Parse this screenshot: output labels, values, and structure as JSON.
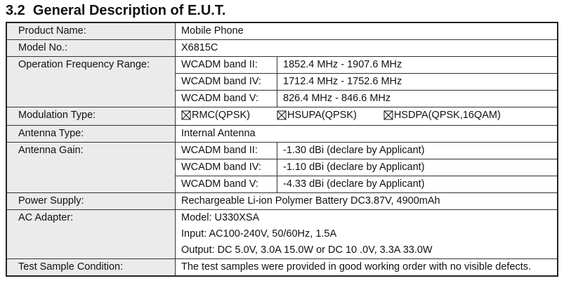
{
  "title": "3.2  General Description of E.U.T.",
  "rows": [
    {
      "label": "Product Name:",
      "value": "Mobile Phone"
    },
    {
      "label": "Model No.:",
      "value": "X6815C"
    },
    {
      "label": "Operation Frequency Range:",
      "items": [
        {
          "band": "WCADM band II:",
          "value": "1852.4 MHz - 1907.6 MHz"
        },
        {
          "band": "WCADM band IV:",
          "value": "1712.4 MHz - 1752.6 MHz"
        },
        {
          "band": "WCADM band V:",
          "value": "826.4 MHz - 846.6 MHz"
        }
      ]
    },
    {
      "label": "Modulation Type:",
      "checks": [
        "RMC(QPSK)",
        "HSUPA(QPSK)",
        "HSDPA(QPSK,16QAM)"
      ]
    },
    {
      "label": "Antenna Type:",
      "value": "Internal Antenna"
    },
    {
      "label": "Antenna Gain:",
      "items": [
        {
          "band": "WCADM band II:",
          "value": "-1.30 dBi (declare by Applicant)"
        },
        {
          "band": "WCADM band IV:",
          "value": "-1.10 dBi (declare by Applicant)"
        },
        {
          "band": "WCADM band V:",
          "value": "-4.33 dBi (declare by Applicant)"
        }
      ]
    },
    {
      "label": "Power Supply:",
      "value": "Rechargeable Li-ion Polymer Battery DC3.87V, 4900mAh"
    },
    {
      "label": "AC Adapter:",
      "lines": [
        "Model: U330XSA",
        "Input: AC100-240V, 50/60Hz, 1.5A",
        "Output: DC 5.0V, 3.0A 15.0W or DC 10 .0V, 3.3A 33.0W"
      ]
    },
    {
      "label": "Test Sample Condition:",
      "value": "The test samples were provided in good working order with no visible defects."
    }
  ]
}
